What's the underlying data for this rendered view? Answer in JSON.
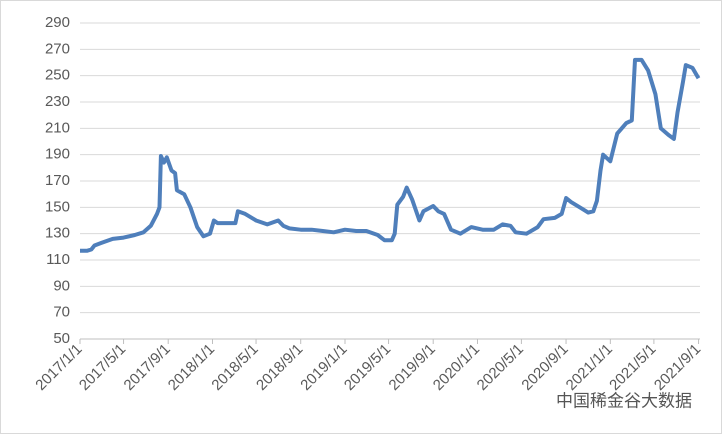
{
  "chart_data": {
    "type": "line",
    "x": [
      "2017/1/1",
      "2017/1/20",
      "2017/2/1",
      "2017/2/10",
      "2017/3/1",
      "2017/4/1",
      "2017/5/1",
      "2017/6/1",
      "2017/6/25",
      "2017/7/15",
      "2017/8/1",
      "2017/8/8",
      "2017/8/12",
      "2017/8/20",
      "2017/8/28",
      "2017/9/10",
      "2017/9/20",
      "2017/9/25",
      "2017/10/15",
      "2017/11/1",
      "2017/11/20",
      "2017/12/7",
      "2017/12/25",
      "2018/1/5",
      "2018/1/15",
      "2018/2/15",
      "2018/3/5",
      "2018/3/12",
      "2018/4/1",
      "2018/5/1",
      "2018/6/1",
      "2018/7/1",
      "2018/7/15",
      "2018/8/1",
      "2018/9/1",
      "2018/10/1",
      "2018/11/1",
      "2018/12/1",
      "2019/1/1",
      "2019/2/1",
      "2019/3/1",
      "2019/4/1",
      "2019/4/20",
      "2019/5/10",
      "2019/5/18",
      "2019/5/25",
      "2019/6/10",
      "2019/6/20",
      "2019/7/5",
      "2019/7/25",
      "2019/8/5",
      "2019/9/1",
      "2019/9/15",
      "2019/10/1",
      "2019/10/20",
      "2019/11/15",
      "2019/12/15",
      "2020/1/15",
      "2020/2/15",
      "2020/3/10",
      "2020/4/1",
      "2020/4/15",
      "2020/5/15",
      "2020/6/15",
      "2020/7/1",
      "2020/8/1",
      "2020/8/20",
      "2020/9/1",
      "2020/9/15",
      "2020/10/15",
      "2020/11/1",
      "2020/11/15",
      "2020/11/25",
      "2020/12/5",
      "2020/12/12",
      "2021/1/1",
      "2021/1/20",
      "2021/2/14",
      "2021/3/1",
      "2021/3/10",
      "2021/3/28",
      "2021/4/15",
      "2021/5/5",
      "2021/5/20",
      "2021/6/10",
      "2021/6/25",
      "2021/7/5",
      "2021/7/20",
      "2021/7/28",
      "2021/8/15",
      "2021/9/1"
    ],
    "series": [
      {
        "color": "#4f7fbb",
        "values": [
          117,
          117,
          118,
          121,
          123,
          126,
          127,
          129,
          131,
          136,
          145,
          150,
          189,
          184,
          188,
          178,
          176,
          163,
          160,
          150,
          135,
          128,
          130,
          140,
          138,
          138,
          138,
          147,
          145,
          140,
          137,
          140,
          136,
          134,
          133,
          133,
          132,
          131,
          133,
          132,
          132,
          129,
          125,
          125,
          130,
          152,
          158,
          165,
          156,
          140,
          147,
          151,
          147,
          145,
          133,
          130,
          135,
          133,
          133,
          137,
          136,
          131,
          130,
          135,
          141,
          142,
          145,
          157,
          154,
          149,
          146,
          147,
          155,
          178,
          190,
          185,
          206,
          214,
          216,
          262,
          262,
          254,
          236,
          210,
          205,
          202,
          222,
          245,
          258,
          256,
          248
        ]
      }
    ],
    "xlim": [
      "2017/1/1",
      "2021/9/5"
    ],
    "xticks": [
      "2017/1/1",
      "2017/5/1",
      "2017/9/1",
      "2018/1/1",
      "2018/5/1",
      "2018/9/1",
      "2019/1/1",
      "2019/5/1",
      "2019/9/1",
      "2020/1/1",
      "2020/5/1",
      "2020/9/1",
      "2021/1/1",
      "2021/5/1",
      "2021/9/1"
    ],
    "ylim": [
      50,
      290
    ],
    "yticks": [
      50,
      70,
      90,
      110,
      130,
      150,
      170,
      190,
      210,
      230,
      250,
      270,
      290
    ],
    "grid": true,
    "watermark": "中国稀金谷大数据"
  }
}
